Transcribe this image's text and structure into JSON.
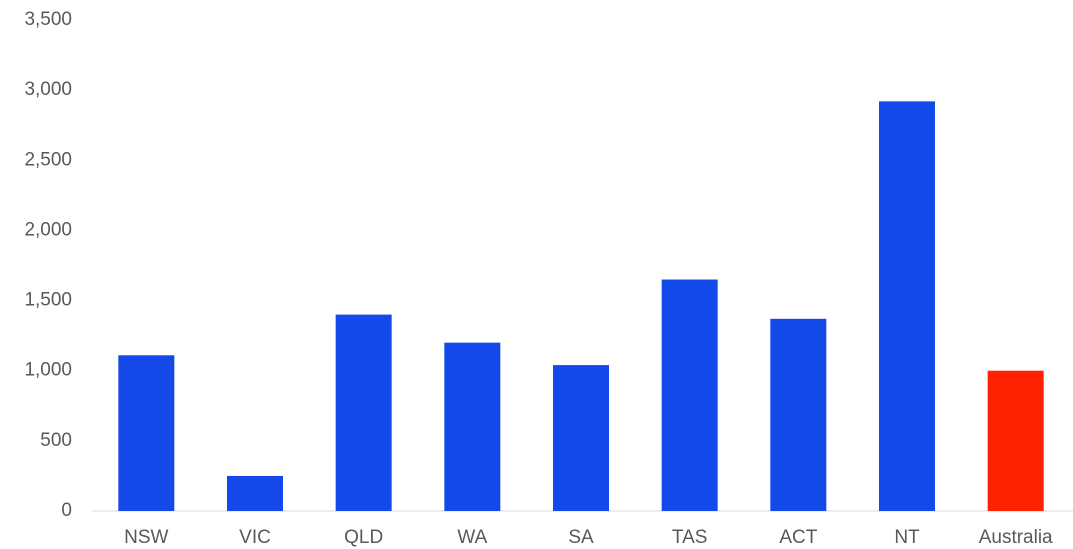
{
  "chart_data": {
    "type": "bar",
    "categories": [
      "NSW",
      "VIC",
      "QLD",
      "WA",
      "SA",
      "TAS",
      "ACT",
      "NT",
      "Australia"
    ],
    "values": [
      1110,
      250,
      1400,
      1200,
      1040,
      1650,
      1370,
      2920,
      1000
    ],
    "colors": [
      "#1249e8",
      "#1249e8",
      "#1249e8",
      "#1249e8",
      "#1249e8",
      "#1249e8",
      "#1249e8",
      "#1249e8",
      "#ff2200"
    ],
    "ylim": [
      0,
      3500
    ],
    "yticks": [
      0,
      500,
      {
        "value": 1000,
        "label": "1,000"
      },
      {
        "value": 1500,
        "label": "1,500"
      },
      {
        "value": 2000,
        "label": "2,000"
      },
      {
        "value": 2500,
        "label": "2,500"
      },
      {
        "value": 3000,
        "label": "3,000"
      },
      {
        "value": 3500,
        "label": "3,500"
      }
    ],
    "grid": false
  }
}
